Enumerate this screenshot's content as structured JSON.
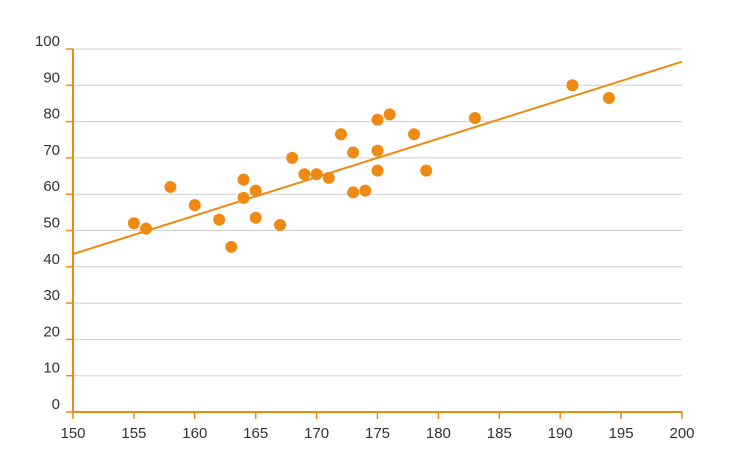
{
  "chart_data": {
    "type": "scatter",
    "title": "",
    "xlabel": "",
    "ylabel": "",
    "xlim": [
      150,
      200
    ],
    "ylim": [
      0,
      100
    ],
    "x_ticks": [
      150,
      155,
      160,
      165,
      170,
      175,
      180,
      185,
      190,
      195,
      200
    ],
    "y_ticks": [
      0,
      10,
      20,
      30,
      40,
      50,
      60,
      70,
      80,
      90,
      100
    ],
    "grid": true,
    "legend": "none",
    "colors": {
      "marker": "#ee8a14",
      "axis": "#ee8a14",
      "trendline": "#ee8a14",
      "grid": "#cfcfcf"
    },
    "series": [
      {
        "points": [
          [
            155,
            52
          ],
          [
            156,
            50.5
          ],
          [
            158,
            62
          ],
          [
            160,
            57
          ],
          [
            162,
            53
          ],
          [
            163,
            45.5
          ],
          [
            164,
            64
          ],
          [
            164,
            59
          ],
          [
            165,
            61
          ],
          [
            165,
            53.5
          ],
          [
            167,
            51.5
          ],
          [
            168,
            70
          ],
          [
            169,
            65.5
          ],
          [
            170,
            65.5
          ],
          [
            171,
            64.5
          ],
          [
            172,
            76.5
          ],
          [
            173,
            71.5
          ],
          [
            173,
            60.5
          ],
          [
            174,
            61
          ],
          [
            175,
            80.5
          ],
          [
            175,
            72
          ],
          [
            175,
            66.5
          ],
          [
            176,
            82
          ],
          [
            178,
            76.5
          ],
          [
            179,
            66.5
          ],
          [
            183,
            81
          ],
          [
            191,
            90
          ],
          [
            194,
            86.5
          ]
        ]
      }
    ],
    "trendline": {
      "x": [
        150,
        200
      ],
      "y": [
        43.5,
        96.5
      ]
    }
  }
}
